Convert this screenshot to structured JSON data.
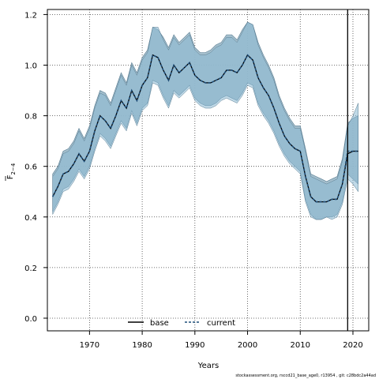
{
  "chart_data": {
    "type": "line",
    "title": "",
    "xlabel": "Years",
    "ylabel_main": "F",
    "ylabel_sub": "2−4",
    "xlim": [
      1962,
      2023
    ],
    "ylim": [
      -0.05,
      1.22
    ],
    "x_ticks": [
      1970,
      1980,
      1990,
      2000,
      2010,
      2020
    ],
    "y_ticks": [
      0.0,
      0.2,
      0.4,
      0.6,
      0.8,
      1.0,
      1.2
    ],
    "y_tick_labels": [
      "0.0",
      "0.2",
      "0.4",
      "0.6",
      "0.8",
      "1.0",
      "1.2"
    ],
    "grid": true,
    "legend_position": "bottom-center",
    "vertical_line_x": 2019,
    "x": [
      1963,
      1964,
      1965,
      1966,
      1967,
      1968,
      1969,
      1970,
      1971,
      1972,
      1973,
      1974,
      1975,
      1976,
      1977,
      1978,
      1979,
      1980,
      1981,
      1982,
      1983,
      1984,
      1985,
      1986,
      1987,
      1988,
      1989,
      1990,
      1991,
      1992,
      1993,
      1994,
      1995,
      1996,
      1997,
      1998,
      1999,
      2000,
      2001,
      2002,
      2003,
      2004,
      2005,
      2006,
      2007,
      2008,
      2009,
      2010,
      2011,
      2012,
      2013,
      2014,
      2015,
      2016,
      2017,
      2018,
      2019,
      2020,
      2021
    ],
    "series": [
      {
        "name": "base",
        "color": "#000000",
        "style": "solid",
        "values": [
          0.48,
          0.52,
          0.57,
          0.58,
          0.61,
          0.65,
          0.62,
          0.66,
          0.74,
          0.8,
          0.78,
          0.75,
          0.8,
          0.86,
          0.83,
          0.9,
          0.86,
          0.92,
          0.95,
          1.04,
          1.03,
          0.98,
          0.94,
          1.0,
          0.97,
          0.99,
          1.01,
          0.96,
          0.94,
          0.93,
          0.93,
          0.94,
          0.95,
          0.98,
          0.98,
          0.97,
          1.0,
          1.04,
          1.02,
          0.95,
          0.91,
          0.88,
          0.83,
          0.77,
          0.72,
          0.69,
          0.67,
          0.66,
          0.56,
          0.48,
          0.46,
          0.46,
          0.46,
          0.47,
          0.47,
          0.53,
          0.65,
          0.66,
          0.66
        ],
        "lower": [
          0.41,
          0.45,
          0.5,
          0.51,
          0.54,
          0.58,
          0.55,
          0.59,
          0.66,
          0.72,
          0.7,
          0.67,
          0.72,
          0.77,
          0.74,
          0.81,
          0.76,
          0.82,
          0.84,
          0.93,
          0.92,
          0.87,
          0.83,
          0.89,
          0.87,
          0.89,
          0.91,
          0.86,
          0.84,
          0.83,
          0.83,
          0.84,
          0.86,
          0.87,
          0.86,
          0.85,
          0.88,
          0.92,
          0.91,
          0.84,
          0.8,
          0.77,
          0.73,
          0.68,
          0.64,
          0.61,
          0.59,
          0.57,
          0.46,
          0.4,
          0.39,
          0.39,
          0.4,
          0.39,
          0.4,
          0.45,
          0.55,
          0.53,
          0.5
        ],
        "upper": [
          0.56,
          0.59,
          0.65,
          0.66,
          0.69,
          0.74,
          0.7,
          0.75,
          0.83,
          0.89,
          0.88,
          0.84,
          0.9,
          0.96,
          0.92,
          1.0,
          0.96,
          1.02,
          1.05,
          1.15,
          1.15,
          1.1,
          1.06,
          1.11,
          1.08,
          1.1,
          1.12,
          1.06,
          1.04,
          1.04,
          1.05,
          1.07,
          1.08,
          1.11,
          1.11,
          1.09,
          1.13,
          1.17,
          1.16,
          1.08,
          1.03,
          0.99,
          0.94,
          0.87,
          0.82,
          0.78,
          0.75,
          0.75,
          0.66,
          0.56,
          0.55,
          0.54,
          0.53,
          0.54,
          0.55,
          0.62,
          0.76,
          0.8,
          0.85
        ]
      },
      {
        "name": "current",
        "color": "#1f4e79",
        "style": "dashed",
        "values": [
          0.48,
          0.52,
          0.57,
          0.58,
          0.61,
          0.65,
          0.62,
          0.66,
          0.74,
          0.8,
          0.78,
          0.75,
          0.8,
          0.86,
          0.83,
          0.9,
          0.86,
          0.92,
          0.95,
          1.04,
          1.03,
          0.98,
          0.94,
          1.0,
          0.97,
          0.99,
          1.01,
          0.96,
          0.94,
          0.93,
          0.93,
          0.94,
          0.95,
          0.98,
          0.98,
          0.97,
          1.0,
          1.04,
          1.02,
          0.95,
          0.91,
          0.88,
          0.83,
          0.77,
          0.72,
          0.69,
          0.67,
          0.66,
          0.56,
          0.48,
          0.46,
          0.46,
          0.46,
          0.47,
          0.47,
          0.53,
          0.66,
          0.66,
          0.66
        ],
        "lower": [
          0.42,
          0.46,
          0.51,
          0.52,
          0.55,
          0.59,
          0.56,
          0.6,
          0.67,
          0.73,
          0.71,
          0.68,
          0.73,
          0.78,
          0.75,
          0.82,
          0.77,
          0.83,
          0.85,
          0.94,
          0.93,
          0.88,
          0.84,
          0.9,
          0.88,
          0.9,
          0.92,
          0.87,
          0.85,
          0.84,
          0.84,
          0.85,
          0.87,
          0.88,
          0.87,
          0.86,
          0.89,
          0.93,
          0.92,
          0.85,
          0.81,
          0.78,
          0.74,
          0.69,
          0.65,
          0.62,
          0.6,
          0.58,
          0.47,
          0.41,
          0.39,
          0.39,
          0.4,
          0.4,
          0.41,
          0.46,
          0.57,
          0.55,
          0.53
        ],
        "upper": [
          0.57,
          0.6,
          0.66,
          0.67,
          0.7,
          0.75,
          0.71,
          0.76,
          0.84,
          0.9,
          0.89,
          0.85,
          0.91,
          0.97,
          0.93,
          1.01,
          0.97,
          1.03,
          1.06,
          1.15,
          1.14,
          1.11,
          1.07,
          1.12,
          1.09,
          1.11,
          1.13,
          1.07,
          1.05,
          1.05,
          1.06,
          1.08,
          1.09,
          1.12,
          1.12,
          1.1,
          1.14,
          1.17,
          1.16,
          1.09,
          1.04,
          1.0,
          0.95,
          0.88,
          0.83,
          0.79,
          0.76,
          0.76,
          0.67,
          0.57,
          0.56,
          0.55,
          0.54,
          0.55,
          0.56,
          0.63,
          0.77,
          0.79,
          0.8
        ]
      }
    ]
  },
  "legend": {
    "base_label": "base",
    "current_label": "current"
  },
  "footer_text": "stockassessment.org, rsccd21_base_age0, r13954 , git: c28bdc2a44ad",
  "colors": {
    "band_base": "#8cbad4",
    "band_current": "#9ab8c8",
    "band_edge": "#5a7d92",
    "grid": "#444444"
  }
}
